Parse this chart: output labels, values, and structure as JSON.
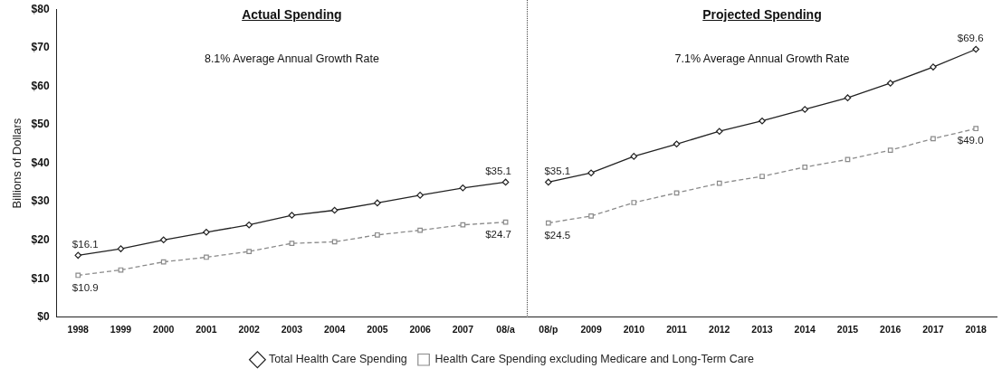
{
  "chart_data": {
    "type": "line",
    "categories": [
      "1998",
      "1999",
      "2000",
      "2001",
      "2002",
      "2003",
      "2004",
      "2005",
      "2006",
      "2007",
      "08/a",
      "08/p",
      "2009",
      "2010",
      "2011",
      "2012",
      "2013",
      "2014",
      "2015",
      "2016",
      "2017",
      "2018"
    ],
    "series": [
      {
        "name": "Total Health Care Spending",
        "color": "#222222",
        "marker": "diamond",
        "line_style": "solid",
        "values": [
          16.1,
          17.8,
          20.1,
          22.1,
          24.0,
          26.5,
          27.8,
          29.7,
          31.7,
          33.6,
          35.1,
          null,
          null,
          null,
          null,
          null,
          null,
          null,
          null,
          null,
          null,
          null
        ],
        "value_labels": [
          "$16.1",
          null,
          null,
          null,
          null,
          null,
          null,
          null,
          null,
          null,
          "$35.1",
          null,
          null,
          null,
          null,
          null,
          null,
          null,
          null,
          null,
          null,
          null
        ]
      },
      {
        "name": "Health Care Spending excluding Medicare and Long-Term Care",
        "color": "#8a8a8a",
        "marker": "square",
        "line_style": "dashed",
        "values": [
          10.9,
          12.3,
          14.4,
          15.6,
          17.1,
          19.2,
          19.6,
          21.4,
          22.6,
          24.0,
          24.7,
          null,
          null,
          null,
          null,
          null,
          null,
          null,
          null,
          null,
          null,
          null
        ],
        "value_labels": [
          "$10.9",
          null,
          null,
          null,
          null,
          null,
          null,
          null,
          null,
          null,
          "$24.7",
          null,
          null,
          null,
          null,
          null,
          null,
          null,
          null,
          null,
          null,
          null
        ]
      },
      {
        "color": "#222222",
        "marker": "diamond",
        "line_style": "solid",
        "values": [
          null,
          null,
          null,
          null,
          null,
          null,
          null,
          null,
          null,
          null,
          null,
          35.1,
          37.5,
          41.8,
          45.0,
          48.3,
          51.0,
          54.0,
          57.0,
          60.8,
          65.0,
          69.6
        ],
        "value_labels": [
          null,
          null,
          null,
          null,
          null,
          null,
          null,
          null,
          null,
          null,
          null,
          "$35.1",
          null,
          null,
          null,
          null,
          null,
          null,
          null,
          null,
          null,
          "$69.6"
        ]
      },
      {
        "color": "#8a8a8a",
        "marker": "square",
        "line_style": "dashed",
        "values": [
          null,
          null,
          null,
          null,
          null,
          null,
          null,
          null,
          null,
          null,
          null,
          24.5,
          26.3,
          29.8,
          32.3,
          34.8,
          36.6,
          39.0,
          41.0,
          43.4,
          46.4,
          49.0
        ],
        "value_labels": [
          null,
          null,
          null,
          null,
          null,
          null,
          null,
          null,
          null,
          null,
          null,
          "$24.5",
          null,
          null,
          null,
          null,
          null,
          null,
          null,
          null,
          null,
          "$49.0"
        ]
      }
    ],
    "ylabel": "Billions of Dollars",
    "ylim": [
      0,
      80
    ],
    "yticks": [
      {
        "value": 0,
        "label": "$0"
      },
      {
        "value": 10,
        "label": "$10"
      },
      {
        "value": 20,
        "label": "$20"
      },
      {
        "value": 30,
        "label": "$30"
      },
      {
        "value": 40,
        "label": "$40"
      },
      {
        "value": 50,
        "label": "$50"
      },
      {
        "value": 60,
        "label": "$60"
      },
      {
        "value": 70,
        "label": "$70"
      },
      {
        "value": 80,
        "label": "$80"
      }
    ],
    "annotations": [
      "Actual Spending",
      "8.1% Average Annual Growth Rate",
      "Projected Spending",
      "7.1% Average Annual Growth Rate"
    ],
    "grid": false,
    "legend": "bottom"
  }
}
